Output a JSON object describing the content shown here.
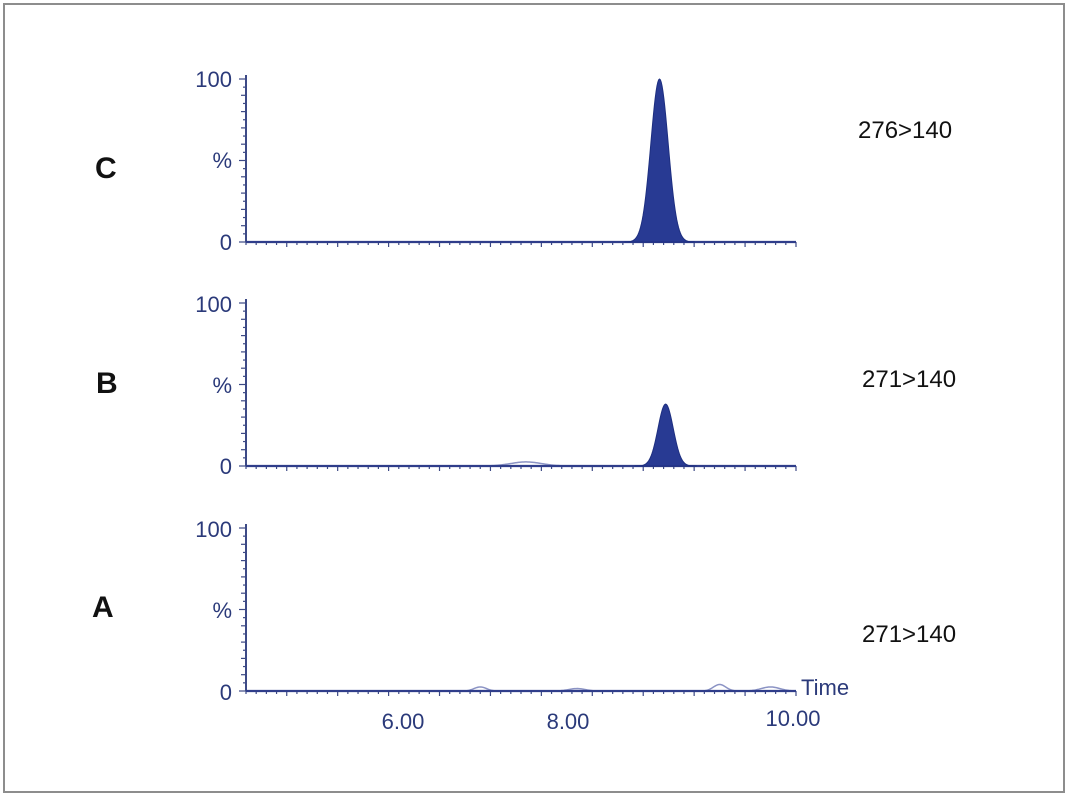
{
  "chart_data": {
    "type": "line",
    "x_label": "Time",
    "x_ticks": [
      6.0,
      8.0,
      10.0
    ],
    "x_tick_labels": [
      "6.00",
      "8.00",
      "10.00"
    ],
    "xlim": [
      4.6,
      10.0
    ],
    "panels": [
      {
        "id": "C",
        "label": "C",
        "transition": "276>140",
        "y_tick_labels": [
          "100",
          "%",
          "0"
        ],
        "ylim": [
          0,
          100
        ],
        "peaks": [
          {
            "rt": 8.66,
            "height": 100,
            "width": 0.085
          }
        ],
        "noise": []
      },
      {
        "id": "B",
        "label": "B",
        "transition": "271>140",
        "y_tick_labels": [
          "100",
          "%",
          "0"
        ],
        "ylim": [
          0,
          100
        ],
        "peaks": [
          {
            "rt": 8.72,
            "height": 38,
            "width": 0.075
          }
        ],
        "noise": [
          {
            "rt": 7.35,
            "height": 2.5,
            "width": 0.15
          }
        ]
      },
      {
        "id": "A",
        "label": "A",
        "transition": "271>140",
        "y_tick_labels": [
          "100",
          "%",
          "0"
        ],
        "ylim": [
          0,
          100
        ],
        "peaks": [],
        "noise": [
          {
            "rt": 6.9,
            "height": 2.5,
            "width": 0.06
          },
          {
            "rt": 7.85,
            "height": 1.5,
            "width": 0.08
          },
          {
            "rt": 9.25,
            "height": 4,
            "width": 0.06
          },
          {
            "rt": 9.75,
            "height": 2.5,
            "width": 0.09
          }
        ]
      }
    ]
  }
}
